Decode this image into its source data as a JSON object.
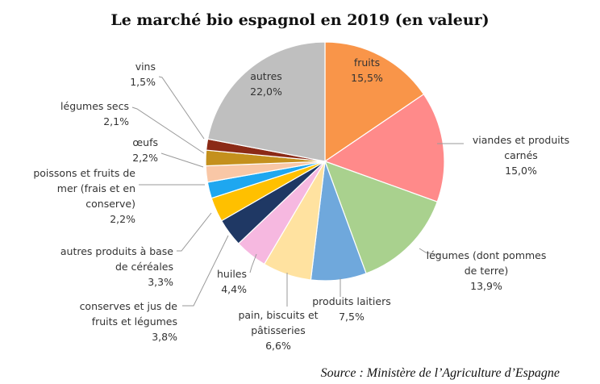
{
  "chart_data": {
    "type": "pie",
    "title": "Le marché bio espagnol en 2019 (en valeur)",
    "start_angle_deg": 0,
    "direction": "clockwise",
    "slices": [
      {
        "label": [
          "fruits"
        ],
        "value_text": "15,5%",
        "value": 15.5,
        "color": "#F99549",
        "label_inside": true
      },
      {
        "label": [
          "viandes et produits",
          "carnés"
        ],
        "value_text": "15,0%",
        "value": 15.0,
        "color": "#FF8A8A",
        "label_inside": false
      },
      {
        "label": [
          "légumes (dont pommes",
          "de terre)"
        ],
        "value_text": "13,9%",
        "value": 13.9,
        "color": "#A9D18E",
        "label_inside": false
      },
      {
        "label": [
          "produits laitiers"
        ],
        "value_text": "7,5%",
        "value": 7.5,
        "color": "#6FA8DC",
        "label_inside": false
      },
      {
        "label": [
          "pain, biscuits et",
          "pâtisseries"
        ],
        "value_text": "6,6%",
        "value": 6.6,
        "color": "#FFE2A0",
        "label_inside": false
      },
      {
        "label": [
          "huiles"
        ],
        "value_text": "4,4%",
        "value": 4.4,
        "color": "#F6B8E0",
        "label_inside": false
      },
      {
        "label": [
          "conserves et jus de",
          "fruits et légumes"
        ],
        "value_text": "3,8%",
        "value": 3.8,
        "color": "#1F3864",
        "label_inside": false
      },
      {
        "label": [
          "autres produits à base",
          "de céréales"
        ],
        "value_text": "3,3%",
        "value": 3.3,
        "color": "#FFC000",
        "label_inside": false
      },
      {
        "label": [
          "poissons et fruits de",
          "mer (frais et en",
          "conserve)"
        ],
        "value_text": "2,2%",
        "value": 2.2,
        "color": "#1EA7F0",
        "label_inside": false
      },
      {
        "label": [
          "œufs"
        ],
        "value_text": "2,2%",
        "value": 2.2,
        "color": "#F9C7A6",
        "label_inside": false
      },
      {
        "label": [
          "légumes secs"
        ],
        "value_text": "2,1%",
        "value": 2.1,
        "color": "#C4901D",
        "label_inside": false
      },
      {
        "label": [
          "vins"
        ],
        "value_text": "1,5%",
        "value": 1.5,
        "color": "#8B2A16",
        "label_inside": false
      },
      {
        "label": [
          "autres"
        ],
        "value_text": "22,0%",
        "value": 22.0,
        "color": "#BFBFBF",
        "label_inside": true
      }
    ]
  },
  "source": "Source : Ministère de l’Agriculture d’Espagne"
}
